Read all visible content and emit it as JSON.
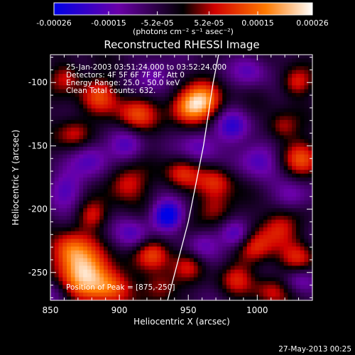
{
  "chart_data": {
    "type": "heatmap",
    "title": "Reconstructed RHESSI Image",
    "xlabel": "Heliocentric X (arcsec)",
    "ylabel": "Heliocentric Y (arcsec)",
    "xlim": [
      850,
      1040
    ],
    "ylim": [
      -272,
      -78
    ],
    "x_ticks": [
      850,
      900,
      950,
      1000
    ],
    "y_ticks": [
      -100,
      -150,
      -200,
      -250
    ],
    "colorbar": {
      "min": -0.00026,
      "max": 0.00026,
      "ticks": [
        "-0.00026",
        "-0.00015",
        "-5.2e-05",
        "5.2e-05",
        "0.00015",
        "0.00026"
      ],
      "tick_values": [
        -0.00026,
        -0.00015,
        -5.2e-05,
        5.2e-05,
        0.00015,
        0.00026
      ],
      "units_label": "(photons cm⁻² s⁻¹ asec⁻²)",
      "colors": [
        "#0000e6",
        "#6a00a8",
        "#000000",
        "#d00000",
        "#ff7a00",
        "#ffffff"
      ]
    },
    "annotations": [
      "25-Jan-2003 03:51:24.000 to 03:52:24.000",
      "Detectors: 4F 5F 6F 7F 8F, Att 0",
      "Energy Range: 25.0 - 50.0 keV",
      "Clean    Total counts: 632.",
      "Position of Peak = [875,-250]"
    ],
    "peak_position": [
      875,
      -250
    ],
    "limb_curve": [
      [
        935,
        -272
      ],
      [
        950,
        -210
      ],
      [
        961,
        -150
      ],
      [
        968,
        -100
      ],
      [
        972,
        -78
      ]
    ],
    "blobs": [
      {
        "x": 875,
        "y": -250,
        "v": 1.0,
        "s": 14
      },
      {
        "x": 863,
        "y": -232,
        "v": 0.55,
        "s": 10
      },
      {
        "x": 895,
        "y": -262,
        "v": 0.55,
        "s": 10
      },
      {
        "x": 925,
        "y": -235,
        "v": 0.6,
        "s": 9
      },
      {
        "x": 930,
        "y": -262,
        "v": 0.45,
        "s": 9
      },
      {
        "x": 960,
        "y": -115,
        "v": 0.85,
        "s": 10
      },
      {
        "x": 948,
        "y": -120,
        "v": 0.6,
        "s": 9
      },
      {
        "x": 912,
        "y": -125,
        "v": 0.6,
        "s": 10
      },
      {
        "x": 885,
        "y": -110,
        "v": 0.55,
        "s": 10
      },
      {
        "x": 868,
        "y": -140,
        "v": 0.5,
        "s": 9
      },
      {
        "x": 862,
        "y": -96,
        "v": 0.45,
        "s": 8
      },
      {
        "x": 905,
        "y": -180,
        "v": 0.55,
        "s": 10
      },
      {
        "x": 945,
        "y": -172,
        "v": 0.5,
        "s": 9
      },
      {
        "x": 970,
        "y": -178,
        "v": 0.5,
        "s": 9
      },
      {
        "x": 970,
        "y": -200,
        "v": 0.45,
        "s": 9
      },
      {
        "x": 998,
        "y": -230,
        "v": 0.5,
        "s": 10
      },
      {
        "x": 1015,
        "y": -215,
        "v": 0.55,
        "s": 10
      },
      {
        "x": 1030,
        "y": -240,
        "v": 0.45,
        "s": 9
      },
      {
        "x": 1032,
        "y": -160,
        "v": 0.55,
        "s": 10
      },
      {
        "x": 1018,
        "y": -135,
        "v": 0.45,
        "s": 8
      },
      {
        "x": 1028,
        "y": -100,
        "v": 0.5,
        "s": 8
      },
      {
        "x": 985,
        "y": -255,
        "v": 0.4,
        "s": 9
      },
      {
        "x": 1010,
        "y": -265,
        "v": 0.4,
        "s": 9
      },
      {
        "x": 950,
        "y": -245,
        "v": 0.35,
        "s": 8
      },
      {
        "x": 880,
        "y": -205,
        "v": 0.45,
        "s": 8
      },
      {
        "x": 935,
        "y": -205,
        "v": -0.9,
        "s": 8
      },
      {
        "x": 985,
        "y": -220,
        "v": -0.65,
        "s": 8
      },
      {
        "x": 982,
        "y": -135,
        "v": -0.55,
        "s": 9
      },
      {
        "x": 1000,
        "y": -160,
        "v": -0.5,
        "s": 10
      },
      {
        "x": 880,
        "y": -160,
        "v": -0.5,
        "s": 10
      },
      {
        "x": 860,
        "y": -185,
        "v": -0.45,
        "s": 10
      },
      {
        "x": 958,
        "y": -150,
        "v": -0.45,
        "s": 9
      },
      {
        "x": 905,
        "y": -150,
        "v": -0.4,
        "s": 9
      },
      {
        "x": 925,
        "y": -95,
        "v": -0.45,
        "s": 9
      },
      {
        "x": 995,
        "y": -90,
        "v": -0.4,
        "s": 9
      },
      {
        "x": 1025,
        "y": -190,
        "v": -0.4,
        "s": 9
      },
      {
        "x": 910,
        "y": -220,
        "v": -0.45,
        "s": 9
      },
      {
        "x": 960,
        "y": -228,
        "v": -0.35,
        "s": 8
      },
      {
        "x": 1030,
        "y": -255,
        "v": -0.35,
        "s": 8
      },
      {
        "x": 850,
        "y": -265,
        "v": -0.3,
        "s": 8
      }
    ]
  },
  "footer": {
    "timestamp": "27-May-2013 00:25"
  }
}
